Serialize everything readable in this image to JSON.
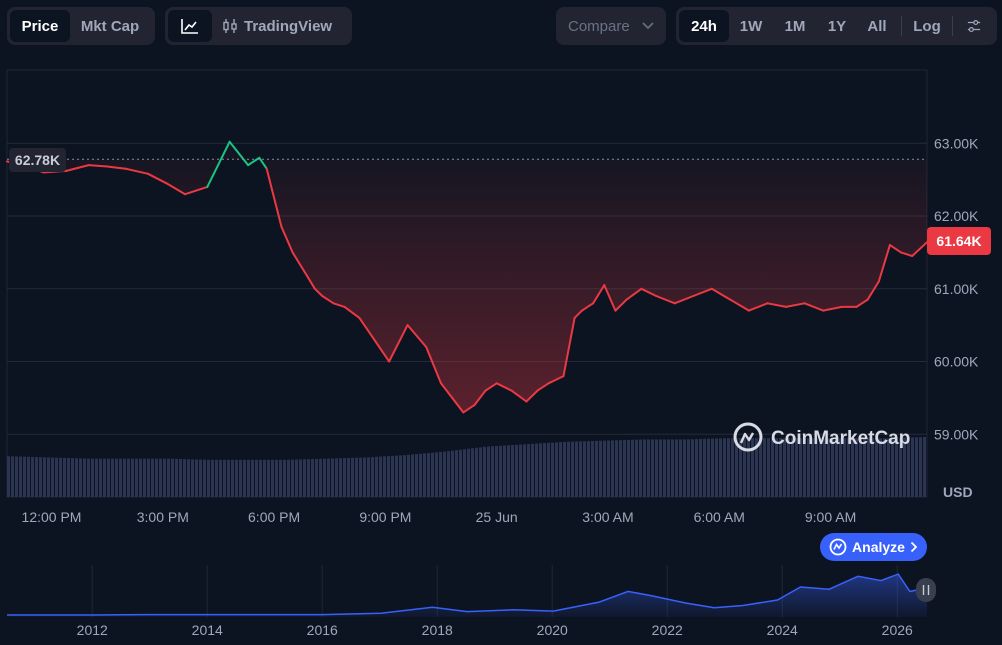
{
  "toolbar": {
    "type_tabs": [
      "Price",
      "Mkt Cap"
    ],
    "view_label": "TradingView",
    "compare_label": "Compare",
    "ranges": [
      "24h",
      "1W",
      "1M",
      "1Y",
      "All"
    ],
    "log_label": "Log",
    "icons": {
      "line_chart": "line-chart-icon",
      "candles": "candlestick-icon",
      "compare": "chevron-down-icon",
      "settings": "sliders-icon"
    }
  },
  "watermark": "CoinMarketCap",
  "analyze_label": "Analyze",
  "colors": {
    "up": "#16c784",
    "down": "#ea3943",
    "volume": "#2b3551",
    "nav_line": "#3861fb",
    "accent": "#3861fb"
  },
  "chart_data": {
    "type": "line",
    "price_label_start": "62.78K",
    "price_label_current": "61.64K",
    "reference_price": 62780,
    "y_ticks": [
      63000,
      62000,
      61000,
      60000,
      59000
    ],
    "y_tick_labels": [
      "63.00K",
      "62.00K",
      "61.00K",
      "60.00K",
      "59.00K"
    ],
    "y_unit": "USD",
    "ylim": [
      58000,
      64000
    ],
    "x_tick_labels": [
      "12:00 PM",
      "3:00 PM",
      "6:00 PM",
      "9:00 PM",
      "25 Jun",
      "3:00 AM",
      "6:00 AM",
      "9:00 AM"
    ],
    "x_tick_hours": [
      12,
      15,
      18,
      21,
      24,
      27,
      30,
      33
    ],
    "xlim_hours": [
      10.8,
      35.6
    ],
    "price_series": {
      "hours": [
        10.8,
        11.3,
        11.8,
        12.4,
        13.0,
        13.5,
        14.0,
        14.6,
        15.1,
        15.6,
        16.2,
        16.8,
        17.3,
        17.6,
        17.8,
        17.95,
        18.2,
        18.5,
        18.8,
        19.1,
        19.3,
        19.6,
        19.9,
        20.3,
        20.7,
        21.1,
        21.6,
        22.1,
        22.5,
        22.8,
        23.1,
        23.4,
        23.7,
        24.0,
        24.4,
        24.8,
        25.1,
        25.4,
        25.8,
        26.1,
        26.3,
        26.6,
        26.9,
        27.2,
        27.5,
        27.9,
        28.3,
        28.8,
        29.3,
        29.8,
        30.3,
        30.8,
        31.3,
        31.8,
        32.3,
        32.8,
        33.3,
        33.7,
        34.0,
        34.3,
        34.6,
        34.9,
        35.2,
        35.6
      ],
      "prices": [
        62750,
        62680,
        62600,
        62620,
        62700,
        62680,
        62650,
        62580,
        62450,
        62300,
        62400,
        63020,
        62700,
        62800,
        62650,
        62350,
        61850,
        61500,
        61250,
        61000,
        60900,
        60800,
        60750,
        60600,
        60300,
        60000,
        60500,
        60200,
        59700,
        59500,
        59300,
        59400,
        59600,
        59700,
        59600,
        59450,
        59600,
        59700,
        59800,
        60600,
        60700,
        60800,
        61050,
        60700,
        60850,
        61000,
        60900,
        60800,
        60900,
        61000,
        60850,
        60700,
        60800,
        60750,
        60800,
        60700,
        60750,
        60750,
        60850,
        61100,
        61600,
        61500,
        61450,
        61640
      ]
    },
    "volume_relative": [
      0.34,
      0.33,
      0.32,
      0.32,
      0.32,
      0.31,
      0.31,
      0.31,
      0.32,
      0.33,
      0.35,
      0.38,
      0.42,
      0.44,
      0.46,
      0.47,
      0.48,
      0.48,
      0.49,
      0.49,
      0.49,
      0.49,
      0.49,
      0.5
    ],
    "navigator": {
      "x_tick_labels": [
        "2012",
        "2014",
        "2016",
        "2018",
        "2020",
        "2022",
        "2024",
        "2026"
      ],
      "x_tick_years": [
        2012,
        2014,
        2016,
        2018,
        2020,
        2022,
        2024,
        2026
      ],
      "xlim_years": [
        2010.5,
        2026.5
      ],
      "years": [
        2010.5,
        2012,
        2013,
        2014,
        2015,
        2016,
        2017,
        2017.9,
        2018.5,
        2019.3,
        2020.0,
        2020.8,
        2021.3,
        2021.7,
        2022.3,
        2022.8,
        2023.3,
        2023.9,
        2024.3,
        2024.8,
        2025.3,
        2025.7,
        2026.0,
        2026.2,
        2026.5
      ],
      "relative_values": [
        0.0,
        0.0,
        0.01,
        0.01,
        0.01,
        0.01,
        0.04,
        0.18,
        0.08,
        0.12,
        0.09,
        0.3,
        0.55,
        0.45,
        0.28,
        0.17,
        0.22,
        0.35,
        0.65,
        0.6,
        0.9,
        0.8,
        0.95,
        0.55,
        0.62
      ]
    }
  }
}
